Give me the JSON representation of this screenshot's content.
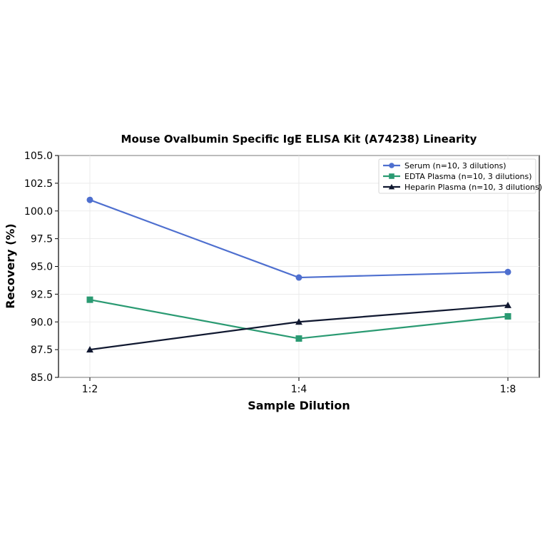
{
  "chart_data": {
    "type": "line",
    "title": "Mouse Ovalbumin Specific IgE ELISA Kit (A74238) Linearity",
    "xlabel": "Sample Dilution",
    "ylabel": "Recovery (%)",
    "categories": [
      "1:2",
      "1:4",
      "1:8"
    ],
    "ylim": [
      85.0,
      105.0
    ],
    "yticks": [
      "85.0",
      "87.5",
      "90.0",
      "92.5",
      "95.0",
      "97.5",
      "100.0",
      "102.5",
      "105.0"
    ],
    "grid": true,
    "legend_position": "top-right",
    "series": [
      {
        "name": "Serum (n=10, 3 dilutions)",
        "values": [
          101.0,
          94.0,
          94.5
        ],
        "color": "#4e6fcf",
        "marker": "circle"
      },
      {
        "name": "EDTA Plasma (n=10, 3 dilutions)",
        "values": [
          92.0,
          88.5,
          90.5
        ],
        "color": "#2a9a72",
        "marker": "square"
      },
      {
        "name": "Heparin Plasma (n=10, 3 dilutions)",
        "values": [
          87.5,
          90.0,
          91.5
        ],
        "color": "#101830",
        "marker": "triangle"
      }
    ]
  }
}
